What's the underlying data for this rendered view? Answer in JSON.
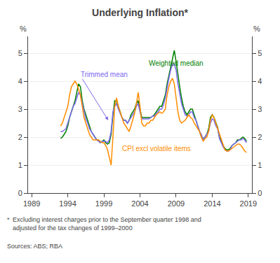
{
  "chart_data": {
    "type": "line",
    "title": "Underlying Inflation*",
    "ylabel": "%",
    "y2label": "%",
    "x": [
      1993.0,
      1993.25,
      1993.5,
      1993.75,
      1994.0,
      1994.25,
      1994.5,
      1994.75,
      1995.0,
      1995.25,
      1995.5,
      1995.75,
      1996.0,
      1996.25,
      1996.5,
      1996.75,
      1997.0,
      1997.25,
      1997.5,
      1997.75,
      1998.0,
      1998.25,
      1998.5,
      1998.75,
      1999.0,
      1999.25,
      1999.5,
      1999.75,
      2000.0,
      2000.25,
      2000.5,
      2000.75,
      2001.0,
      2001.25,
      2001.5,
      2001.75,
      2002.0,
      2002.25,
      2002.5,
      2002.75,
      2003.0,
      2003.25,
      2003.5,
      2003.75,
      2004.0,
      2004.25,
      2004.5,
      2004.75,
      2005.0,
      2005.25,
      2005.5,
      2005.75,
      2006.0,
      2006.25,
      2006.5,
      2006.75,
      2007.0,
      2007.25,
      2007.5,
      2007.75,
      2008.0,
      2008.25,
      2008.5,
      2008.75,
      2009.0,
      2009.25,
      2009.5,
      2009.75,
      2010.0,
      2010.25,
      2010.5,
      2010.75,
      2011.0,
      2011.25,
      2011.5,
      2011.75,
      2012.0,
      2012.25,
      2012.5,
      2012.75,
      2013.0,
      2013.25,
      2013.5,
      2013.75,
      2014.0,
      2014.25,
      2014.5,
      2014.75,
      2015.0,
      2015.25,
      2015.5,
      2015.75,
      2016.0,
      2016.25,
      2016.5,
      2016.75,
      2017.0,
      2017.25,
      2017.5,
      2017.75,
      2018.0,
      2018.25,
      2018.5,
      2018.75
    ],
    "series": [
      {
        "name": "Weighted median",
        "color": "#008000",
        "annotation": {
          "x": 2005.0,
          "y": 4.65
        },
        "values": [
          1.95,
          2.0,
          2.1,
          2.2,
          2.4,
          2.7,
          2.9,
          3.1,
          3.3,
          3.6,
          3.9,
          3.8,
          3.3,
          3.0,
          2.8,
          2.6,
          2.4,
          2.2,
          2.1,
          2.0,
          1.9,
          1.9,
          1.8,
          1.85,
          1.9,
          1.8,
          1.75,
          1.8,
          2.1,
          2.8,
          3.3,
          3.3,
          3.1,
          2.9,
          2.7,
          2.6,
          2.6,
          2.5,
          2.6,
          2.8,
          2.9,
          3.0,
          3.2,
          3.3,
          3.0,
          2.7,
          2.7,
          2.7,
          2.7,
          2.7,
          2.7,
          2.75,
          2.8,
          2.9,
          3.0,
          3.1,
          3.1,
          3.3,
          3.5,
          3.9,
          4.2,
          4.5,
          4.8,
          5.1,
          4.7,
          4.2,
          3.8,
          3.4,
          3.1,
          2.9,
          2.8,
          2.9,
          3.0,
          3.0,
          2.8,
          2.6,
          2.4,
          2.2,
          2.0,
          1.95,
          2.0,
          2.1,
          2.3,
          2.7,
          2.8,
          2.7,
          2.5,
          2.35,
          2.0,
          1.85,
          1.7,
          1.6,
          1.55,
          1.55,
          1.6,
          1.7,
          1.75,
          1.8,
          1.9,
          1.9,
          1.95,
          2.0,
          1.95,
          1.85
        ]
      },
      {
        "name": "Trimmed mean",
        "color": "#7B68EE",
        "annotation": {
          "x": 1995.6,
          "y": 4.25,
          "arrow_x": 1999.6,
          "arrow_y": 2.6
        },
        "values": [
          2.2,
          2.2,
          2.25,
          2.3,
          2.5,
          2.7,
          2.9,
          3.1,
          3.2,
          3.4,
          3.6,
          3.5,
          3.2,
          2.9,
          2.65,
          2.5,
          2.3,
          2.2,
          2.1,
          2.0,
          1.9,
          1.85,
          1.8,
          1.85,
          1.85,
          1.85,
          1.8,
          1.9,
          2.2,
          2.9,
          3.1,
          3.2,
          3.0,
          2.85,
          2.7,
          2.6,
          2.6,
          2.5,
          2.6,
          2.7,
          2.8,
          2.9,
          3.1,
          3.2,
          2.9,
          2.65,
          2.65,
          2.65,
          2.65,
          2.65,
          2.7,
          2.75,
          2.75,
          2.85,
          2.9,
          3.0,
          3.0,
          3.15,
          3.4,
          3.8,
          4.1,
          4.4,
          4.6,
          4.6,
          4.4,
          3.9,
          3.5,
          3.2,
          3.0,
          2.8,
          2.75,
          2.8,
          2.9,
          2.9,
          2.7,
          2.6,
          2.4,
          2.2,
          2.1,
          1.9,
          2.0,
          2.1,
          2.2,
          2.5,
          2.65,
          2.6,
          2.4,
          2.3,
          1.95,
          1.8,
          1.65,
          1.55,
          1.5,
          1.5,
          1.55,
          1.7,
          1.75,
          1.8,
          1.85,
          1.9,
          1.9,
          1.95,
          1.9,
          1.8
        ]
      },
      {
        "name": "CPI excl volatile items",
        "color": "#FF8C00",
        "annotation": {
          "x": 2001.3,
          "y": 1.6
        },
        "values": [
          2.4,
          2.5,
          2.7,
          2.9,
          3.1,
          3.5,
          3.8,
          3.9,
          4.0,
          3.9,
          3.7,
          3.5,
          3.1,
          2.7,
          2.5,
          2.3,
          2.1,
          2.0,
          1.9,
          1.9,
          1.9,
          1.9,
          1.85,
          1.8,
          1.8,
          1.7,
          1.55,
          1.3,
          1.0,
          2.0,
          3.1,
          3.4,
          3.1,
          2.9,
          2.7,
          2.5,
          2.4,
          2.3,
          2.2,
          2.4,
          2.6,
          2.85,
          3.2,
          3.6,
          3.1,
          2.5,
          2.4,
          2.4,
          2.5,
          2.5,
          2.6,
          2.6,
          2.7,
          2.8,
          2.85,
          2.9,
          2.85,
          2.9,
          3.0,
          3.5,
          3.8,
          4.0,
          4.1,
          3.9,
          3.4,
          2.9,
          2.6,
          2.5,
          2.55,
          2.6,
          2.7,
          2.8,
          2.7,
          2.65,
          2.5,
          2.4,
          2.3,
          2.2,
          2.0,
          1.85,
          1.95,
          2.0,
          2.2,
          2.6,
          2.8,
          2.7,
          2.5,
          2.3,
          2.1,
          1.9,
          1.7,
          1.55,
          1.5,
          1.5,
          1.55,
          1.6,
          1.65,
          1.7,
          1.75,
          1.75,
          1.7,
          1.6,
          1.5,
          1.45
        ]
      }
    ],
    "xlim": [
      1988.5,
      2019.5
    ],
    "xticks": [
      1989,
      1994,
      1999,
      2004,
      2009,
      2014,
      2019
    ],
    "ylim": [
      0,
      5.6
    ],
    "yticks": [
      0,
      1,
      2,
      3,
      4,
      5
    ],
    "y2lim": [
      0,
      5.6
    ],
    "y2ticks": [
      0,
      1,
      2,
      3,
      4,
      5
    ],
    "grid": "y",
    "footnote_marker": "*",
    "footnote": "Excluding interest charges prior to the September quarter 1998 and\nadjusted for the tax changes of 1999–2000",
    "sources": "Sources: ABS; RBA"
  }
}
